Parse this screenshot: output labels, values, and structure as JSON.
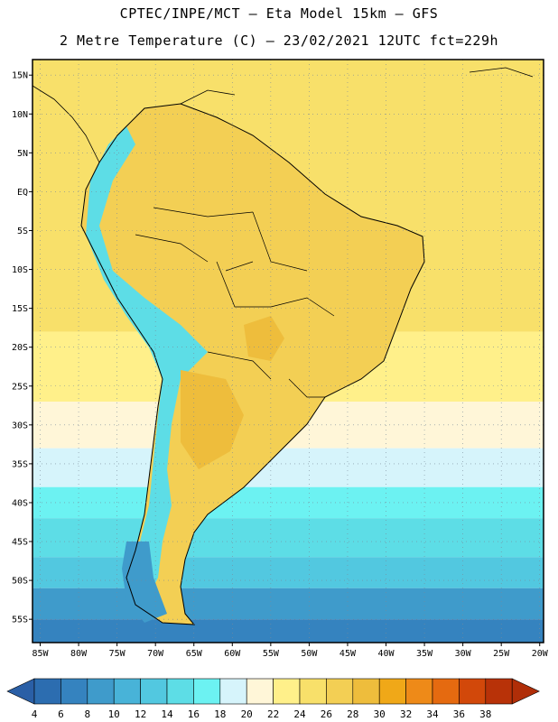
{
  "header": {
    "line1": "CPTEC/INPE/MCT –  Eta Model 15km – GFS",
    "line2": "2 Metre Temperature (C) – 23/02/2021 12UTC fct=229h"
  },
  "map": {
    "lat_range": [
      -58,
      17
    ],
    "lon_range": [
      -86,
      -19.5
    ],
    "lat_ticks": [
      {
        "value": 15,
        "label": "15N"
      },
      {
        "value": 10,
        "label": "10N"
      },
      {
        "value": 5,
        "label": "5N"
      },
      {
        "value": 0,
        "label": "EQ"
      },
      {
        "value": -5,
        "label": "5S"
      },
      {
        "value": -10,
        "label": "10S"
      },
      {
        "value": -15,
        "label": "15S"
      },
      {
        "value": -20,
        "label": "20S"
      },
      {
        "value": -25,
        "label": "25S"
      },
      {
        "value": -30,
        "label": "30S"
      },
      {
        "value": -35,
        "label": "35S"
      },
      {
        "value": -40,
        "label": "40S"
      },
      {
        "value": -45,
        "label": "45S"
      },
      {
        "value": -50,
        "label": "50S"
      },
      {
        "value": -55,
        "label": "55S"
      }
    ],
    "lon_ticks": [
      {
        "value": -85,
        "label": "85W"
      },
      {
        "value": -80,
        "label": "80W"
      },
      {
        "value": -75,
        "label": "75W"
      },
      {
        "value": -70,
        "label": "70W"
      },
      {
        "value": -65,
        "label": "65W"
      },
      {
        "value": -60,
        "label": "60W"
      },
      {
        "value": -55,
        "label": "55W"
      },
      {
        "value": -50,
        "label": "50W"
      },
      {
        "value": -45,
        "label": "45W"
      },
      {
        "value": -40,
        "label": "40W"
      },
      {
        "value": -35,
        "label": "35W"
      },
      {
        "value": -30,
        "label": "30W"
      },
      {
        "value": -25,
        "label": "25W"
      },
      {
        "value": -20,
        "label": "20W"
      }
    ],
    "gridlines": true
  },
  "colorbar": {
    "labels": [
      "4",
      "6",
      "8",
      "10",
      "12",
      "14",
      "16",
      "18",
      "20",
      "22",
      "24",
      "26",
      "28",
      "30",
      "32",
      "34",
      "36",
      "38"
    ],
    "colors": [
      "#2c6db0",
      "#3583bf",
      "#3f9bcb",
      "#48b3d8",
      "#52c8e0",
      "#5ddde6",
      "#6cf2f2",
      "#d6f4fb",
      "#fff6d8",
      "#fff08a",
      "#f8e06a",
      "#f3cf54",
      "#eebd3c",
      "#f0a818",
      "#ee8a18",
      "#e56a10",
      "#d2480a",
      "#b83208"
    ],
    "under_color": "#2a5fa6",
    "over_color": "#b02e08"
  },
  "fields": {
    "ocean_band_colors": [
      {
        "from_lat": 17,
        "to_lat": -18,
        "color": "#f8e06a"
      },
      {
        "from_lat": -18,
        "to_lat": -27,
        "color": "#fff08a"
      },
      {
        "from_lat": -27,
        "to_lat": -33,
        "color": "#fff6d8"
      },
      {
        "from_lat": -33,
        "to_lat": -38,
        "color": "#d6f4fb"
      },
      {
        "from_lat": -38,
        "to_lat": -42,
        "color": "#6cf2f2"
      },
      {
        "from_lat": -42,
        "to_lat": -47,
        "color": "#5ddde6"
      },
      {
        "from_lat": -47,
        "to_lat": -51,
        "color": "#52c8e0"
      },
      {
        "from_lat": -51,
        "to_lat": -55,
        "color": "#3f9bcb"
      },
      {
        "from_lat": -55,
        "to_lat": -58,
        "color": "#3583bf"
      }
    ],
    "land_color": "#f3cf54",
    "andes_color": "#5ddde6"
  }
}
